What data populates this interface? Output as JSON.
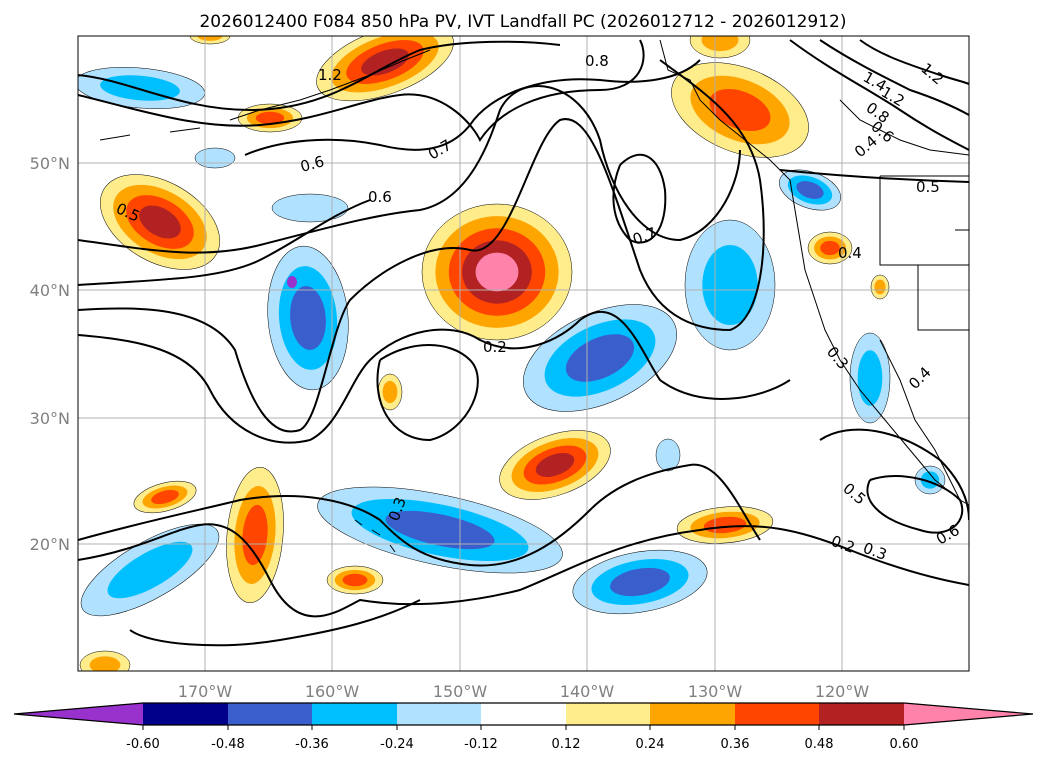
{
  "title": "2026012400 F084 850 hPa PV, IVT Landfall PC (2026012712 - 2026012912)",
  "map": {
    "projection": "PlateCarree",
    "lon_range": [
      -180,
      -110
    ],
    "lat_range": [
      10,
      60
    ],
    "lon_ticks": [
      "170°W",
      "160°W",
      "150°W",
      "140°W",
      "130°W",
      "120°W"
    ],
    "lat_ticks": [
      "50°N",
      "40°N",
      "30°N",
      "20°N"
    ],
    "contour_labels": [
      "0.8",
      "0.7",
      "0.6",
      "0.6",
      "0.5",
      "0.7",
      "0.2",
      "0.3",
      "0.4",
      "0.3",
      "0.4",
      "0.5",
      "0.5",
      "0.2",
      "0.3",
      "0.6",
      "1.4",
      "1.2",
      "0.8",
      "0.6",
      "1.2",
      "0.4",
      "1.2"
    ]
  },
  "colorbar": {
    "levels": [
      "-0.60",
      "-0.48",
      "-0.36",
      "-0.24",
      "-0.12",
      "0.12",
      "0.24",
      "0.36",
      "0.48",
      "0.60"
    ],
    "colors": [
      "#9932cc",
      "#00008b",
      "#3a5fcd",
      "#00bfff",
      "#b0e2ff",
      "#ffffff",
      "#ffec8b",
      "#ffa500",
      "#ff4500",
      "#b22222",
      "#ff82ab"
    ],
    "extend": "both"
  }
}
